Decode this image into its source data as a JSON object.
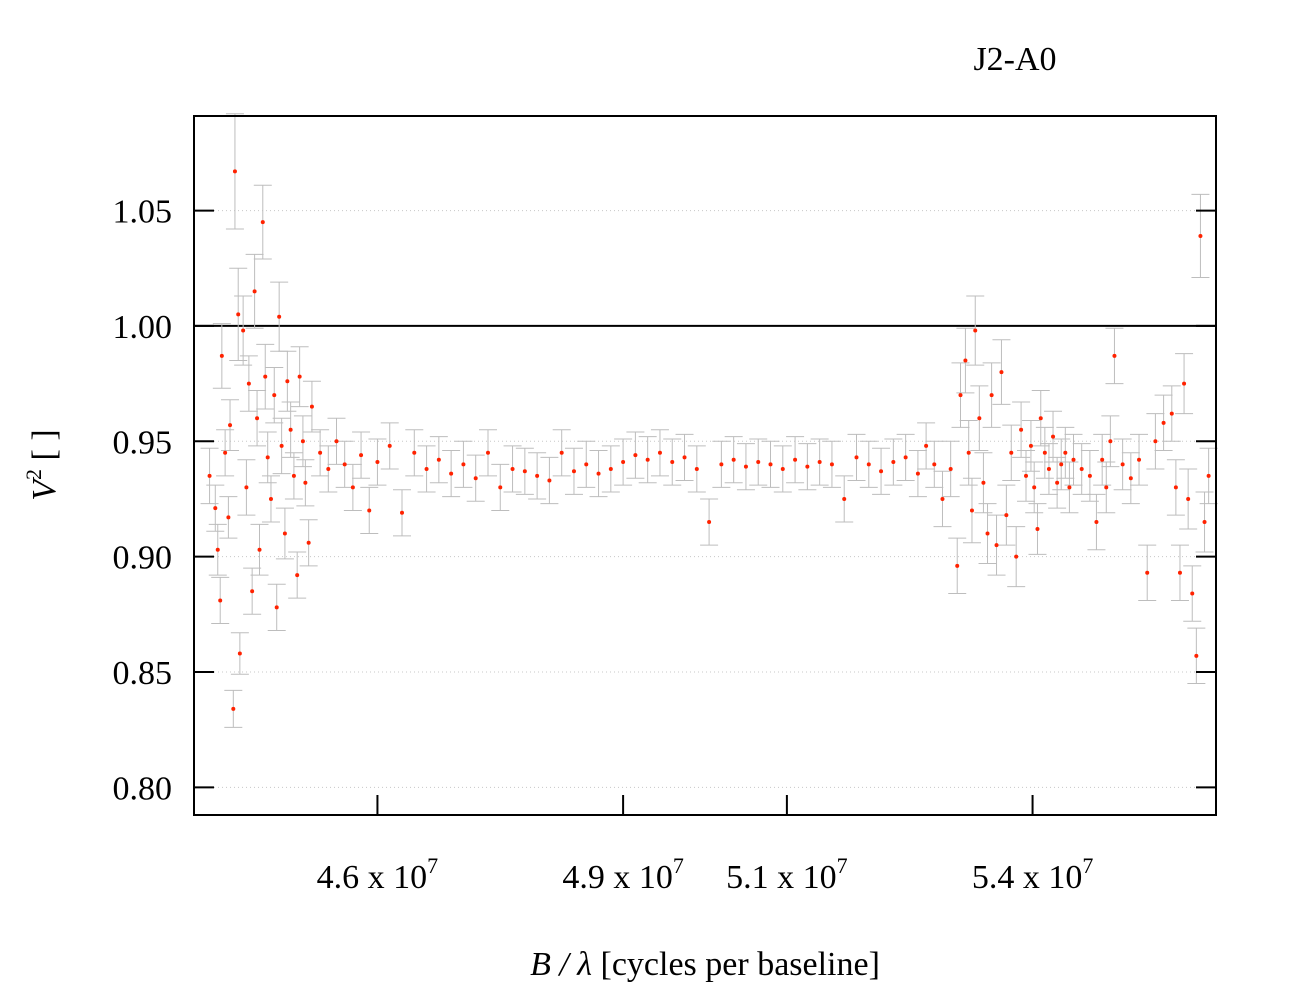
{
  "chart_data": {
    "type": "scatter",
    "title": "J2-A0",
    "xlabel": {
      "var": "B / λ",
      "unit": " [cycles per baseline]"
    },
    "ylabel": {
      "base": "V",
      "sup": "2",
      "unit": " [ ]"
    },
    "x_range": [
      43760000.0,
      56240000.0
    ],
    "ylim": [
      0.788,
      1.091
    ],
    "x_ticks": [
      {
        "value": 46000000.0,
        "mant": "4.6 x 10",
        "exp": "7"
      },
      {
        "value": 49000000.0,
        "mant": "4.9 x 10",
        "exp": "7"
      },
      {
        "value": 51000000.0,
        "mant": "5.1 x 10",
        "exp": "7"
      },
      {
        "value": 54000000.0,
        "mant": "5.4 x 10",
        "exp": "7"
      }
    ],
    "y_ticks": [
      "0.80",
      "0.85",
      "0.90",
      "0.95",
      "1.00",
      "1.05"
    ],
    "reference_line": 1.0,
    "grid": "dotted horizontal",
    "colors": {
      "point": "#ff2200",
      "errorbar": "#bdbdbd",
      "reference": "#000000"
    },
    "series": [
      {
        "points": [
          [
            43950000.0,
            0.935,
            0.012
          ],
          [
            44020000.0,
            0.921,
            0.01
          ],
          [
            44050000.0,
            0.903,
            0.011
          ],
          [
            44080000.0,
            0.881,
            0.01
          ],
          [
            44100000.0,
            0.987,
            0.014
          ],
          [
            44140000.0,
            0.945,
            0.01
          ],
          [
            44180000.0,
            0.917,
            0.009
          ],
          [
            44200000.0,
            0.957,
            0.011
          ],
          [
            44240000.0,
            0.834,
            0.008
          ],
          [
            44260000.0,
            1.067,
            0.025
          ],
          [
            44300000.0,
            1.005,
            0.02
          ],
          [
            44320000.0,
            0.858,
            0.009
          ],
          [
            44360000.0,
            0.998,
            0.015
          ],
          [
            44400000.0,
            0.93,
            0.012
          ],
          [
            44430000.0,
            0.975,
            0.012
          ],
          [
            44470000.0,
            0.885,
            0.01
          ],
          [
            44500000.0,
            1.015,
            0.016
          ],
          [
            44530000.0,
            0.96,
            0.012
          ],
          [
            44560000.0,
            0.903,
            0.011
          ],
          [
            44600000.0,
            1.045,
            0.016
          ],
          [
            44630000.0,
            0.978,
            0.014
          ],
          [
            44660000.0,
            0.943,
            0.011
          ],
          [
            44700000.0,
            0.925,
            0.01
          ],
          [
            44740000.0,
            0.97,
            0.012
          ],
          [
            44770000.0,
            0.878,
            0.01
          ],
          [
            44800000.0,
            1.004,
            0.015
          ],
          [
            44830000.0,
            0.948,
            0.012
          ],
          [
            44870000.0,
            0.91,
            0.011
          ],
          [
            44900000.0,
            0.976,
            0.013
          ],
          [
            44940000.0,
            0.955,
            0.012
          ],
          [
            44980000.0,
            0.935,
            0.01
          ],
          [
            45020000.0,
            0.892,
            0.01
          ],
          [
            45050000.0,
            0.978,
            0.013
          ],
          [
            45090000.0,
            0.95,
            0.011
          ],
          [
            45120000.0,
            0.932,
            0.01
          ],
          [
            45160000.0,
            0.906,
            0.01
          ],
          [
            45200000.0,
            0.965,
            0.011
          ],
          [
            45300000.0,
            0.945,
            0.01
          ],
          [
            45400000.0,
            0.938,
            0.01
          ],
          [
            45500000.0,
            0.95,
            0.01
          ],
          [
            45600000.0,
            0.94,
            0.01
          ],
          [
            45700000.0,
            0.93,
            0.01
          ],
          [
            45800000.0,
            0.944,
            0.01
          ],
          [
            45900000.0,
            0.92,
            0.01
          ],
          [
            46000000.0,
            0.941,
            0.01
          ],
          [
            46150000.0,
            0.948,
            0.01
          ],
          [
            46300000.0,
            0.919,
            0.01
          ],
          [
            46450000.0,
            0.945,
            0.01
          ],
          [
            46600000.0,
            0.938,
            0.01
          ],
          [
            46750000.0,
            0.942,
            0.01
          ],
          [
            46900000.0,
            0.936,
            0.01
          ],
          [
            47050000.0,
            0.94,
            0.01
          ],
          [
            47200000.0,
            0.934,
            0.01
          ],
          [
            47350000.0,
            0.945,
            0.01
          ],
          [
            47500000.0,
            0.93,
            0.01
          ],
          [
            47650000.0,
            0.938,
            0.01
          ],
          [
            47800000.0,
            0.937,
            0.01
          ],
          [
            47950000.0,
            0.935,
            0.01
          ],
          [
            48100000.0,
            0.933,
            0.01
          ],
          [
            48250000.0,
            0.945,
            0.01
          ],
          [
            48400000.0,
            0.937,
            0.01
          ],
          [
            48550000.0,
            0.94,
            0.01
          ],
          [
            48700000.0,
            0.936,
            0.01
          ],
          [
            48850000.0,
            0.938,
            0.01
          ],
          [
            49000000.0,
            0.941,
            0.01
          ],
          [
            49150000.0,
            0.944,
            0.01
          ],
          [
            49300000.0,
            0.942,
            0.01
          ],
          [
            49450000.0,
            0.945,
            0.01
          ],
          [
            49600000.0,
            0.941,
            0.01
          ],
          [
            49750000.0,
            0.943,
            0.01
          ],
          [
            49900000.0,
            0.938,
            0.01
          ],
          [
            50050000.0,
            0.915,
            0.01
          ],
          [
            50200000.0,
            0.94,
            0.01
          ],
          [
            50350000.0,
            0.942,
            0.01
          ],
          [
            50500000.0,
            0.939,
            0.01
          ],
          [
            50650000.0,
            0.941,
            0.01
          ],
          [
            50800000.0,
            0.94,
            0.01
          ],
          [
            50950000.0,
            0.938,
            0.01
          ],
          [
            51100000.0,
            0.942,
            0.01
          ],
          [
            51250000.0,
            0.939,
            0.01
          ],
          [
            51400000.0,
            0.941,
            0.01
          ],
          [
            51550000.0,
            0.94,
            0.01
          ],
          [
            51700000.0,
            0.925,
            0.01
          ],
          [
            51850000.0,
            0.943,
            0.01
          ],
          [
            52000000.0,
            0.94,
            0.01
          ],
          [
            52150000.0,
            0.937,
            0.01
          ],
          [
            52300000.0,
            0.941,
            0.01
          ],
          [
            52450000.0,
            0.943,
            0.01
          ],
          [
            52600000.0,
            0.936,
            0.01
          ],
          [
            52700000.0,
            0.948,
            0.01
          ],
          [
            52800000.0,
            0.94,
            0.01
          ],
          [
            52900000.0,
            0.925,
            0.012
          ],
          [
            53000000.0,
            0.938,
            0.012
          ],
          [
            53080000.0,
            0.896,
            0.012
          ],
          [
            53120000.0,
            0.97,
            0.014
          ],
          [
            53180000.0,
            0.985,
            0.014
          ],
          [
            53220000.0,
            0.945,
            0.014
          ],
          [
            53260000.0,
            0.92,
            0.014
          ],
          [
            53300000.0,
            0.998,
            0.015
          ],
          [
            53350000.0,
            0.96,
            0.014
          ],
          [
            53400000.0,
            0.932,
            0.013
          ],
          [
            53450000.0,
            0.91,
            0.013
          ],
          [
            53500000.0,
            0.97,
            0.014
          ],
          [
            53560000.0,
            0.905,
            0.013
          ],
          [
            53620000.0,
            0.98,
            0.014
          ],
          [
            53680000.0,
            0.918,
            0.013
          ],
          [
            53740000.0,
            0.945,
            0.012
          ],
          [
            53800000.0,
            0.9,
            0.013
          ],
          [
            53860000.0,
            0.955,
            0.012
          ],
          [
            53920000.0,
            0.935,
            0.011
          ],
          [
            53980000.0,
            0.948,
            0.011
          ],
          [
            54020000.0,
            0.93,
            0.011
          ],
          [
            54060000.0,
            0.912,
            0.011
          ],
          [
            54100000.0,
            0.96,
            0.012
          ],
          [
            54150000.0,
            0.945,
            0.011
          ],
          [
            54200000.0,
            0.938,
            0.011
          ],
          [
            54250000.0,
            0.952,
            0.011
          ],
          [
            54300000.0,
            0.932,
            0.011
          ],
          [
            54350000.0,
            0.94,
            0.011
          ],
          [
            54400000.0,
            0.945,
            0.011
          ],
          [
            54450000.0,
            0.93,
            0.011
          ],
          [
            54500000.0,
            0.942,
            0.011
          ],
          [
            54600000.0,
            0.938,
            0.011
          ],
          [
            54700000.0,
            0.935,
            0.011
          ],
          [
            54780000.0,
            0.915,
            0.012
          ],
          [
            54850000.0,
            0.942,
            0.011
          ],
          [
            54900000.0,
            0.93,
            0.011
          ],
          [
            54950000.0,
            0.95,
            0.011
          ],
          [
            55000000.0,
            0.987,
            0.012
          ],
          [
            55100000.0,
            0.94,
            0.011
          ],
          [
            55200000.0,
            0.934,
            0.011
          ],
          [
            55300000.0,
            0.942,
            0.011
          ],
          [
            55400000.0,
            0.893,
            0.012
          ],
          [
            55500000.0,
            0.95,
            0.012
          ],
          [
            55600000.0,
            0.958,
            0.012
          ],
          [
            55700000.0,
            0.962,
            0.012
          ],
          [
            55750000.0,
            0.93,
            0.012
          ],
          [
            55800000.0,
            0.893,
            0.012
          ],
          [
            55850000.0,
            0.975,
            0.013
          ],
          [
            55900000.0,
            0.925,
            0.013
          ],
          [
            55950000.0,
            0.884,
            0.012
          ],
          [
            56000000.0,
            0.857,
            0.012
          ],
          [
            56050000.0,
            1.039,
            0.018
          ],
          [
            56100000.0,
            0.915,
            0.013
          ],
          [
            56150000.0,
            0.935,
            0.012
          ]
        ]
      }
    ]
  }
}
